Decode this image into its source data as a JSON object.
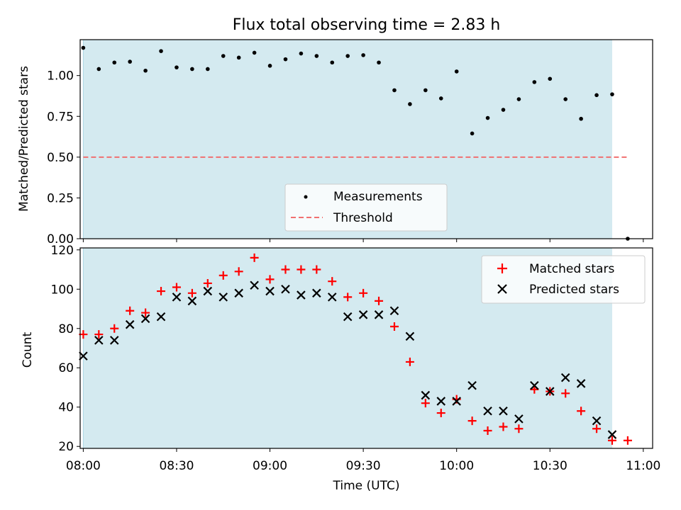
{
  "chart_data": [
    {
      "type": "scatter",
      "title": "Flux total observing time = 2.83 h",
      "xlabel": "",
      "ylabel": "Matched/Predicted stars",
      "xlim": [
        "07:59",
        "11:03"
      ],
      "ylim": [
        0,
        1.22
      ],
      "yticks": [
        "0.00",
        "0.25",
        "0.50",
        "0.75",
        "1.00"
      ],
      "shaded_span": {
        "from": "08:00",
        "to": "10:50",
        "color": "#d4eaf0"
      },
      "threshold": {
        "name": "Threshold",
        "value": 0.5,
        "color": "#f07070",
        "x_from": "08:00",
        "x_to": "10:55"
      },
      "series": [
        {
          "name": "Measurements",
          "marker": "dot",
          "color": "#000000",
          "x": [
            "08:00",
            "08:05",
            "08:10",
            "08:15",
            "08:20",
            "08:25",
            "08:30",
            "08:35",
            "08:40",
            "08:45",
            "08:50",
            "08:55",
            "09:00",
            "09:05",
            "09:10",
            "09:15",
            "09:20",
            "09:25",
            "09:30",
            "09:35",
            "09:40",
            "09:45",
            "09:50",
            "09:55",
            "10:00",
            "10:05",
            "10:10",
            "10:15",
            "10:20",
            "10:25",
            "10:30",
            "10:35",
            "10:40",
            "10:45",
            "10:50",
            "10:55"
          ],
          "y": [
            1.17,
            1.04,
            1.08,
            1.085,
            1.03,
            1.15,
            1.05,
            1.04,
            1.04,
            1.12,
            1.11,
            1.14,
            1.06,
            1.1,
            1.135,
            1.12,
            1.08,
            1.12,
            1.125,
            1.08,
            0.91,
            0.825,
            0.91,
            0.86,
            1.025,
            0.645,
            0.74,
            0.79,
            0.855,
            0.96,
            0.98,
            0.855,
            0.735,
            0.88,
            0.885,
            0.0
          ]
        }
      ],
      "legend": {
        "position": "lower-center",
        "entries": [
          "Measurements",
          "Threshold"
        ]
      }
    },
    {
      "type": "scatter",
      "title": "",
      "xlabel": "Time (UTC)",
      "ylabel": "Count",
      "xlim": [
        "07:59",
        "11:03"
      ],
      "ylim": [
        19,
        121
      ],
      "xticks": [
        "08:00",
        "08:30",
        "09:00",
        "09:30",
        "10:00",
        "10:30",
        "11:00"
      ],
      "yticks": [
        "20",
        "40",
        "60",
        "80",
        "100",
        "120"
      ],
      "shaded_span": {
        "from": "08:00",
        "to": "10:50",
        "color": "#d4eaf0"
      },
      "x": [
        "08:00",
        "08:05",
        "08:10",
        "08:15",
        "08:20",
        "08:25",
        "08:30",
        "08:35",
        "08:40",
        "08:45",
        "08:50",
        "08:55",
        "09:00",
        "09:05",
        "09:10",
        "09:15",
        "09:20",
        "09:25",
        "09:30",
        "09:35",
        "09:40",
        "09:45",
        "09:50",
        "09:55",
        "10:00",
        "10:05",
        "10:10",
        "10:15",
        "10:20",
        "10:25",
        "10:30",
        "10:35",
        "10:40",
        "10:45",
        "10:50",
        "10:55"
      ],
      "series": [
        {
          "name": "Matched stars",
          "marker": "plus",
          "color": "#ff0000",
          "values": [
            77,
            77,
            80,
            89,
            88,
            99,
            101,
            98,
            103,
            107,
            109,
            116,
            105,
            110,
            110,
            110,
            104,
            96,
            98,
            94,
            81,
            63,
            42,
            37,
            44,
            33,
            28,
            30,
            29,
            49,
            48,
            47,
            38,
            29,
            23,
            23
          ]
        },
        {
          "name": "Predicted stars",
          "marker": "x",
          "color": "#000000",
          "values": [
            66,
            74,
            74,
            82,
            85,
            86,
            96,
            94,
            99,
            96,
            98,
            102,
            99,
            100,
            97,
            98,
            96,
            86,
            87,
            87,
            89,
            76,
            46,
            43,
            43,
            51,
            38,
            38,
            34,
            51,
            48,
            55,
            52,
            33,
            26,
            null
          ]
        }
      ],
      "legend": {
        "position": "upper-right",
        "entries": [
          "Matched stars",
          "Predicted stars"
        ]
      }
    }
  ]
}
